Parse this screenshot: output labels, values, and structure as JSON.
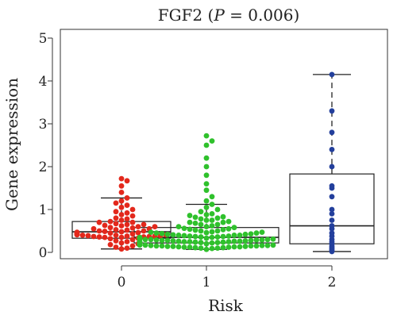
{
  "chart_data": {
    "type": "scatter",
    "title": "FGF2 (P = 0.006)",
    "title_parts": {
      "gene": "FGF2 (",
      "p_symbol": "P",
      "rest": " = 0.006)"
    },
    "xlabel": "Risk",
    "ylabel": "Gene expression",
    "ylim": [
      0,
      5
    ],
    "yticks": [
      "0",
      "1",
      "2",
      "3",
      "4",
      "5"
    ],
    "categories": [
      "0",
      "1",
      "2"
    ],
    "grid": false,
    "legend": "none",
    "groups": [
      {
        "category": "0",
        "color": "#e3281c",
        "box": {
          "whisker_low": 0.08,
          "q1": 0.33,
          "median": 0.48,
          "q3": 0.72,
          "whisker_high": 1.27
        },
        "points": [
          0.08,
          0.1,
          0.12,
          0.15,
          0.18,
          0.2,
          0.22,
          0.25,
          0.27,
          0.3,
          0.32,
          0.33,
          0.35,
          0.36,
          0.37,
          0.38,
          0.39,
          0.4,
          0.41,
          0.42,
          0.43,
          0.45,
          0.46,
          0.47,
          0.48,
          0.49,
          0.5,
          0.52,
          0.53,
          0.55,
          0.57,
          0.58,
          0.6,
          0.62,
          0.63,
          0.65,
          0.67,
          0.7,
          0.72,
          0.75,
          0.78,
          0.8,
          0.85,
          0.88,
          0.92,
          0.95,
          1.0,
          1.05,
          1.1,
          1.15,
          1.2,
          1.27,
          1.4,
          1.55,
          1.67,
          1.72,
          0.35,
          0.38,
          0.4,
          0.42,
          0.44,
          0.46,
          0.37,
          0.39,
          0.43,
          0.5,
          0.55,
          0.6,
          0.65,
          0.7,
          0.36,
          0.41
        ]
      },
      {
        "category": "1",
        "color": "#2fc12c",
        "box": {
          "whisker_low": 0.07,
          "q1": 0.22,
          "median": 0.35,
          "q3": 0.58,
          "whisker_high": 1.12
        },
        "points": [
          0.07,
          0.09,
          0.1,
          0.11,
          0.12,
          0.13,
          0.14,
          0.15,
          0.16,
          0.17,
          0.18,
          0.19,
          0.2,
          0.21,
          0.22,
          0.23,
          0.24,
          0.25,
          0.26,
          0.27,
          0.28,
          0.29,
          0.3,
          0.31,
          0.32,
          0.33,
          0.34,
          0.35,
          0.36,
          0.37,
          0.38,
          0.39,
          0.4,
          0.41,
          0.42,
          0.43,
          0.44,
          0.45,
          0.46,
          0.47,
          0.48,
          0.5,
          0.52,
          0.54,
          0.56,
          0.58,
          0.6,
          0.62,
          0.65,
          0.68,
          0.7,
          0.72,
          0.75,
          0.78,
          0.8,
          0.83,
          0.86,
          0.9,
          0.95,
          1.0,
          1.05,
          1.12,
          1.2,
          1.3,
          1.45,
          1.6,
          1.8,
          2.0,
          2.2,
          2.5,
          2.6,
          2.72,
          0.12,
          0.14,
          0.16,
          0.18,
          0.2,
          0.22,
          0.24,
          0.26,
          0.28,
          0.3,
          0.32,
          0.34,
          0.36,
          0.38,
          0.4,
          0.15,
          0.17,
          0.19,
          0.21,
          0.23,
          0.25,
          0.27,
          0.29,
          0.31,
          0.33,
          0.13,
          0.15,
          0.18,
          0.2,
          0.22,
          0.25,
          0.28,
          0.11,
          0.14,
          0.17,
          0.19,
          0.21,
          0.24,
          0.12,
          0.16,
          0.2,
          0.23,
          0.26,
          0.3,
          0.35,
          0.4,
          0.45,
          0.5,
          0.55,
          0.6,
          0.65,
          0.7,
          0.75,
          0.82,
          0.88,
          0.1,
          0.13,
          0.15,
          0.18,
          0.21,
          0.25,
          0.29,
          0.33,
          0.37,
          0.42,
          0.47,
          0.53
        ]
      },
      {
        "category": "2",
        "color": "#233f9c",
        "box": {
          "whisker_low": 0.02,
          "q1": 0.2,
          "median": 0.62,
          "q3": 1.83,
          "whisker_high": 4.15
        },
        "points": [
          0.02,
          0.05,
          0.08,
          0.12,
          0.15,
          0.2,
          0.25,
          0.3,
          0.38,
          0.45,
          0.55,
          0.62,
          0.75,
          0.9,
          1.0,
          1.3,
          1.5,
          1.55,
          2.0,
          2.4,
          2.8,
          3.3,
          4.15
        ]
      }
    ]
  }
}
